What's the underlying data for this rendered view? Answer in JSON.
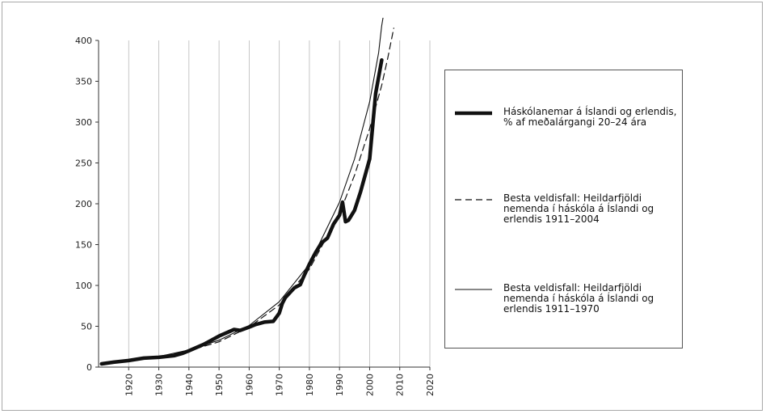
{
  "chart_data": {
    "type": "line",
    "title": "",
    "xlabel": "",
    "ylabel": "",
    "xlim": [
      1910,
      2020
    ],
    "ylim": [
      0,
      420
    ],
    "x_ticks": [
      1920,
      1930,
      1940,
      1950,
      1960,
      1970,
      1980,
      1990,
      2000,
      2010,
      2020
    ],
    "y_ticks": [
      0,
      50,
      100,
      150,
      200,
      250,
      300,
      350,
      400
    ],
    "grid": "vertical",
    "legend_position": "right",
    "series": [
      {
        "name": "Háskólanemar á Íslandi og erlendis, % af meðalárgangi 20–24 ára",
        "style": "thick-solid",
        "color": "#111111",
        "points": [
          [
            1911,
            4
          ],
          [
            1915,
            6
          ],
          [
            1920,
            8
          ],
          [
            1925,
            11
          ],
          [
            1930,
            12
          ],
          [
            1935,
            14
          ],
          [
            1938,
            17
          ],
          [
            1940,
            20
          ],
          [
            1945,
            28
          ],
          [
            1950,
            38
          ],
          [
            1955,
            46
          ],
          [
            1957,
            45
          ],
          [
            1960,
            49
          ],
          [
            1962,
            52
          ],
          [
            1965,
            55
          ],
          [
            1968,
            56
          ],
          [
            1970,
            66
          ],
          [
            1971,
            78
          ],
          [
            1972,
            85
          ],
          [
            1975,
            97
          ],
          [
            1977,
            101
          ],
          [
            1978,
            110
          ],
          [
            1980,
            126
          ],
          [
            1982,
            140
          ],
          [
            1984,
            152
          ],
          [
            1986,
            158
          ],
          [
            1988,
            175
          ],
          [
            1990,
            186
          ],
          [
            1991,
            202
          ],
          [
            1992,
            178
          ],
          [
            1993,
            180
          ],
          [
            1995,
            192
          ],
          [
            1997,
            215
          ],
          [
            2000,
            255
          ],
          [
            2002,
            335
          ],
          [
            2004,
            376
          ]
        ]
      },
      {
        "name": "Besta veldisfall: Heildarfjöldi nemenda í háskóla á Íslandi og erlendis 1911–2004",
        "style": "dashed",
        "color": "#111111",
        "points": [
          [
            1911,
            5
          ],
          [
            1920,
            8
          ],
          [
            1930,
            12
          ],
          [
            1940,
            20
          ],
          [
            1950,
            31
          ],
          [
            1960,
            49
          ],
          [
            1970,
            76
          ],
          [
            1980,
            120
          ],
          [
            1990,
            188
          ],
          [
            1995,
            235
          ],
          [
            2000,
            292
          ],
          [
            2004,
            345
          ],
          [
            2006,
            378
          ],
          [
            2008,
            415
          ]
        ]
      },
      {
        "name": "Besta veldisfall: Heildarfjöldi nemenda í háskóla á Íslandi og erlendis 1911–1970",
        "style": "thin-solid",
        "color": "#111111",
        "points": [
          [
            1911,
            5
          ],
          [
            1920,
            8
          ],
          [
            1930,
            13
          ],
          [
            1940,
            21
          ],
          [
            1950,
            33
          ],
          [
            1960,
            51
          ],
          [
            1970,
            80
          ],
          [
            1980,
            126
          ],
          [
            1990,
            202
          ],
          [
            1995,
            255
          ],
          [
            2000,
            325
          ],
          [
            2003,
            385
          ],
          [
            2004,
            418
          ],
          [
            2005,
            440
          ]
        ]
      }
    ]
  }
}
